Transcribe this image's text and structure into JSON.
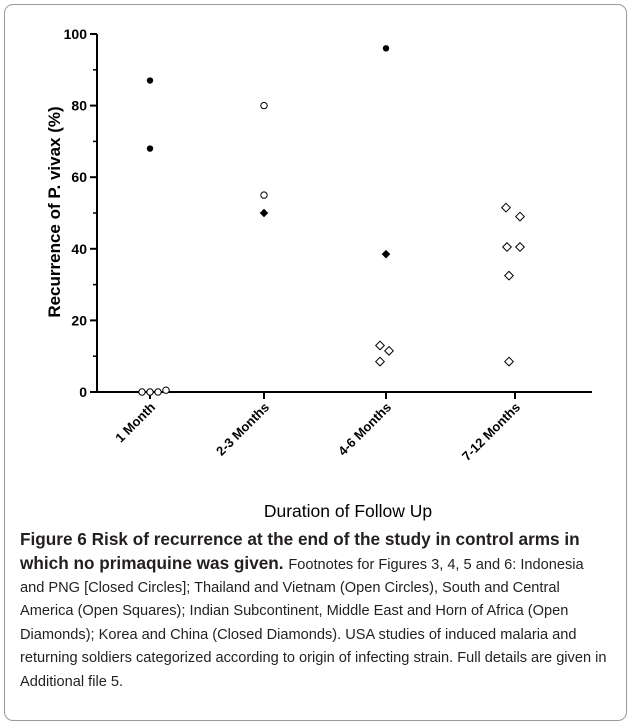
{
  "chart_data": {
    "type": "scatter",
    "ylabel": "Recurrence of P. vivax (%)",
    "xlabel": "Duration of Follow Up",
    "ylim": [
      0,
      100
    ],
    "yticks": [
      0,
      20,
      40,
      60,
      80,
      100
    ],
    "categories": [
      "1 Month",
      "2-3 Months",
      "4-6 Months",
      "7-12 Months"
    ],
    "grid": false,
    "points": [
      {
        "category": "1 Month",
        "value": 87,
        "marker": "closed-circle"
      },
      {
        "category": "1 Month",
        "value": 68,
        "marker": "closed-circle"
      },
      {
        "category": "1 Month",
        "value": 0,
        "marker": "open-circle"
      },
      {
        "category": "1 Month",
        "value": 0,
        "marker": "open-circle"
      },
      {
        "category": "1 Month",
        "value": 0,
        "marker": "open-circle"
      },
      {
        "category": "1 Month",
        "value": 0.5,
        "marker": "open-circle"
      },
      {
        "category": "2-3 Months",
        "value": 80,
        "marker": "open-circle"
      },
      {
        "category": "2-3 Months",
        "value": 55,
        "marker": "open-circle"
      },
      {
        "category": "2-3 Months",
        "value": 50,
        "marker": "closed-diamond"
      },
      {
        "category": "4-6 Months",
        "value": 96,
        "marker": "closed-circle"
      },
      {
        "category": "4-6 Months",
        "value": 38.5,
        "marker": "closed-diamond"
      },
      {
        "category": "4-6 Months",
        "value": 13,
        "marker": "open-diamond"
      },
      {
        "category": "4-6 Months",
        "value": 11.5,
        "marker": "open-diamond"
      },
      {
        "category": "4-6 Months",
        "value": 8.5,
        "marker": "open-diamond"
      },
      {
        "category": "7-12 Months",
        "value": 51.5,
        "marker": "open-diamond"
      },
      {
        "category": "7-12 Months",
        "value": 49,
        "marker": "open-diamond"
      },
      {
        "category": "7-12 Months",
        "value": 40.5,
        "marker": "open-diamond"
      },
      {
        "category": "7-12 Months",
        "value": 40.5,
        "marker": "open-diamond"
      },
      {
        "category": "7-12 Months",
        "value": 32.5,
        "marker": "open-diamond"
      },
      {
        "category": "7-12 Months",
        "value": 8.5,
        "marker": "open-diamond"
      }
    ]
  },
  "caption": {
    "title": "Figure 6 Risk of recurrence at the end of the study in control arms in which no primaquine was given.",
    "body": "Footnotes for Figures 3, 4, 5 and 6: Indonesia and PNG [Closed Circles]; Thailand and Vietnam (Open Circles), South and Central America (Open Squares); Indian Subcontinent, Middle East and Horn of Africa (Open Diamonds); Korea and China (Closed Diamonds). USA studies of induced malaria and returning soldiers categorized according to origin of infecting strain. Full details are given in Additional file 5."
  }
}
